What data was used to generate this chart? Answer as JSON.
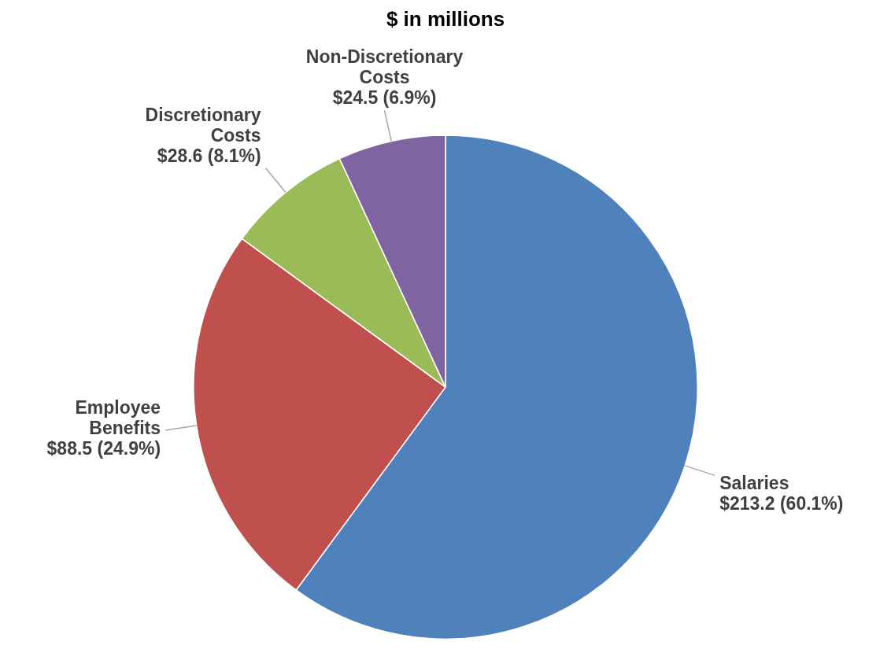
{
  "chart_data": {
    "type": "pie",
    "title": "$ in millions",
    "categories": [
      "Salaries",
      "Employee Benefits",
      "Discretionary Costs",
      "Non-Discretionary Costs"
    ],
    "values": [
      213.2,
      88.5,
      28.6,
      24.5
    ],
    "colors": [
      "#4f81bd",
      "#c0504d",
      "#9bbb59",
      "#8064a2"
    ],
    "value_labels": [
      "$213.2 (60.1%)",
      "$88.5 (24.9%)",
      "$28.6 (8.1%)",
      "$24.5 (6.9%)"
    ],
    "legend": false
  }
}
